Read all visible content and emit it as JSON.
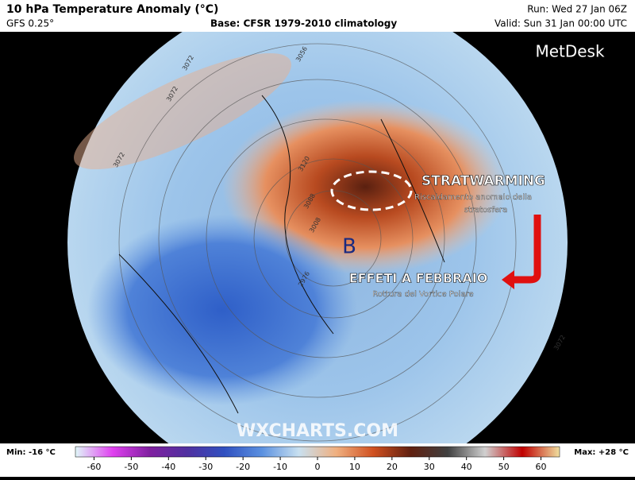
{
  "header": {
    "title": "10 hPa Temperature Anomaly (°C)",
    "model": "GFS 0.25°",
    "base": "Base: CFSR 1979-2010 climatology",
    "run": "Run: Wed 27 Jan 06Z",
    "valid": "Valid: Sun 31 Jan 00:00 UTC",
    "brand": "MetDesk"
  },
  "map": {
    "annotations": {
      "headline": "STRATWARMING",
      "subline1": "Riscaldamento anomalo della",
      "subline2": "stratosfera",
      "low_marker": "B",
      "effects": "EFFETI A FEBBRAIO",
      "effects_sub": "Rottura del Vortice Polare"
    },
    "contour_labels": [
      "3072",
      "3056",
      "3072",
      "3072",
      "3120",
      "3088",
      "3008",
      "2976",
      "3072"
    ],
    "watermark": "WXCHARTS.COM"
  },
  "colorbar": {
    "min_label": "Min: -16 °C",
    "max_label": "Max: +28 °C",
    "lim": [
      -65,
      65
    ],
    "ticks": [
      -60,
      -50,
      -40,
      -30,
      -20,
      -10,
      0,
      10,
      20,
      30,
      40,
      50,
      60
    ],
    "colors": [
      "#e0f8f8",
      "#e040f0",
      "#8020a0",
      "#5030a0",
      "#3050c0",
      "#5a90e0",
      "#c8e0f0",
      "#f0b080",
      "#d05020",
      "#602010",
      "#404040",
      "#d0d0d0",
      "#c00000",
      "#f0e0a0"
    ]
  }
}
